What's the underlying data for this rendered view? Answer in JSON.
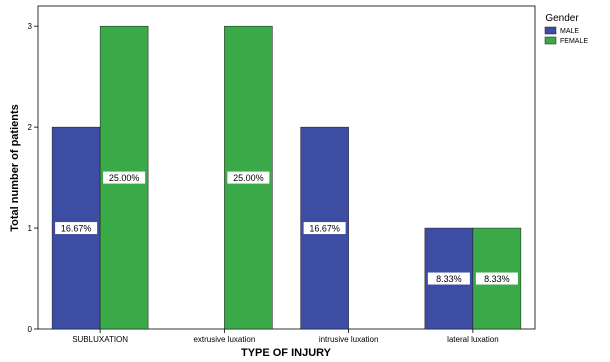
{
  "chart_data": {
    "type": "bar",
    "title": "",
    "xlabel": "TYPE OF INJURY",
    "ylabel": "Total number of patients",
    "categories": [
      "SUBLUXATION",
      "extrusive luxation",
      "intrusive luxation",
      "lateral luxation"
    ],
    "series": [
      {
        "name": "MALE",
        "color": "#3d4da3",
        "values": [
          2,
          0,
          2,
          1
        ],
        "labels": [
          "16.67%",
          "",
          "16.67%",
          "8.33%"
        ]
      },
      {
        "name": "FEMALE",
        "color": "#3aaa48",
        "values": [
          3,
          3,
          0,
          1
        ],
        "labels": [
          "25.00%",
          "25.00%",
          "",
          "8.33%"
        ]
      }
    ],
    "yticks": [
      0,
      1,
      2,
      3
    ],
    "ylim": [
      0,
      3.2
    ],
    "grid": false,
    "legend": {
      "title": "Gender",
      "position": "right"
    }
  }
}
